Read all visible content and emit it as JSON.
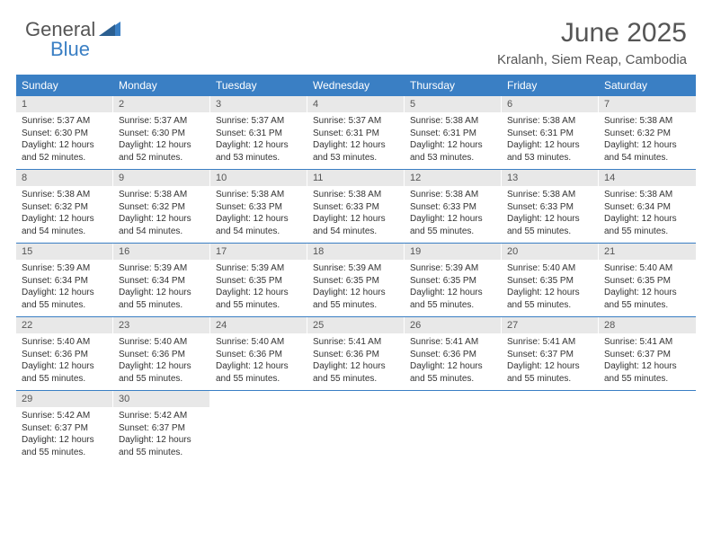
{
  "logo": {
    "textGeneral": "General",
    "textBlue": "Blue"
  },
  "title": "June 2025",
  "location": "Kralanh, Siem Reap, Cambodia",
  "colors": {
    "headerBlue": "#3a7fc4",
    "dayNumBg": "#e8e8e8",
    "textDark": "#333333",
    "textMedium": "#555555",
    "background": "#ffffff"
  },
  "typography": {
    "title_fontsize": 30,
    "location_fontsize": 15,
    "weekday_fontsize": 12,
    "daynum_fontsize": 11,
    "body_fontsize": 10
  },
  "weekdays": [
    "Sunday",
    "Monday",
    "Tuesday",
    "Wednesday",
    "Thursday",
    "Friday",
    "Saturday"
  ],
  "days": [
    {
      "num": "1",
      "sunrise": "Sunrise: 5:37 AM",
      "sunset": "Sunset: 6:30 PM",
      "daylight": "Daylight: 12 hours and 52 minutes."
    },
    {
      "num": "2",
      "sunrise": "Sunrise: 5:37 AM",
      "sunset": "Sunset: 6:30 PM",
      "daylight": "Daylight: 12 hours and 52 minutes."
    },
    {
      "num": "3",
      "sunrise": "Sunrise: 5:37 AM",
      "sunset": "Sunset: 6:31 PM",
      "daylight": "Daylight: 12 hours and 53 minutes."
    },
    {
      "num": "4",
      "sunrise": "Sunrise: 5:37 AM",
      "sunset": "Sunset: 6:31 PM",
      "daylight": "Daylight: 12 hours and 53 minutes."
    },
    {
      "num": "5",
      "sunrise": "Sunrise: 5:38 AM",
      "sunset": "Sunset: 6:31 PM",
      "daylight": "Daylight: 12 hours and 53 minutes."
    },
    {
      "num": "6",
      "sunrise": "Sunrise: 5:38 AM",
      "sunset": "Sunset: 6:31 PM",
      "daylight": "Daylight: 12 hours and 53 minutes."
    },
    {
      "num": "7",
      "sunrise": "Sunrise: 5:38 AM",
      "sunset": "Sunset: 6:32 PM",
      "daylight": "Daylight: 12 hours and 54 minutes."
    },
    {
      "num": "8",
      "sunrise": "Sunrise: 5:38 AM",
      "sunset": "Sunset: 6:32 PM",
      "daylight": "Daylight: 12 hours and 54 minutes."
    },
    {
      "num": "9",
      "sunrise": "Sunrise: 5:38 AM",
      "sunset": "Sunset: 6:32 PM",
      "daylight": "Daylight: 12 hours and 54 minutes."
    },
    {
      "num": "10",
      "sunrise": "Sunrise: 5:38 AM",
      "sunset": "Sunset: 6:33 PM",
      "daylight": "Daylight: 12 hours and 54 minutes."
    },
    {
      "num": "11",
      "sunrise": "Sunrise: 5:38 AM",
      "sunset": "Sunset: 6:33 PM",
      "daylight": "Daylight: 12 hours and 54 minutes."
    },
    {
      "num": "12",
      "sunrise": "Sunrise: 5:38 AM",
      "sunset": "Sunset: 6:33 PM",
      "daylight": "Daylight: 12 hours and 55 minutes."
    },
    {
      "num": "13",
      "sunrise": "Sunrise: 5:38 AM",
      "sunset": "Sunset: 6:33 PM",
      "daylight": "Daylight: 12 hours and 55 minutes."
    },
    {
      "num": "14",
      "sunrise": "Sunrise: 5:38 AM",
      "sunset": "Sunset: 6:34 PM",
      "daylight": "Daylight: 12 hours and 55 minutes."
    },
    {
      "num": "15",
      "sunrise": "Sunrise: 5:39 AM",
      "sunset": "Sunset: 6:34 PM",
      "daylight": "Daylight: 12 hours and 55 minutes."
    },
    {
      "num": "16",
      "sunrise": "Sunrise: 5:39 AM",
      "sunset": "Sunset: 6:34 PM",
      "daylight": "Daylight: 12 hours and 55 minutes."
    },
    {
      "num": "17",
      "sunrise": "Sunrise: 5:39 AM",
      "sunset": "Sunset: 6:35 PM",
      "daylight": "Daylight: 12 hours and 55 minutes."
    },
    {
      "num": "18",
      "sunrise": "Sunrise: 5:39 AM",
      "sunset": "Sunset: 6:35 PM",
      "daylight": "Daylight: 12 hours and 55 minutes."
    },
    {
      "num": "19",
      "sunrise": "Sunrise: 5:39 AM",
      "sunset": "Sunset: 6:35 PM",
      "daylight": "Daylight: 12 hours and 55 minutes."
    },
    {
      "num": "20",
      "sunrise": "Sunrise: 5:40 AM",
      "sunset": "Sunset: 6:35 PM",
      "daylight": "Daylight: 12 hours and 55 minutes."
    },
    {
      "num": "21",
      "sunrise": "Sunrise: 5:40 AM",
      "sunset": "Sunset: 6:35 PM",
      "daylight": "Daylight: 12 hours and 55 minutes."
    },
    {
      "num": "22",
      "sunrise": "Sunrise: 5:40 AM",
      "sunset": "Sunset: 6:36 PM",
      "daylight": "Daylight: 12 hours and 55 minutes."
    },
    {
      "num": "23",
      "sunrise": "Sunrise: 5:40 AM",
      "sunset": "Sunset: 6:36 PM",
      "daylight": "Daylight: 12 hours and 55 minutes."
    },
    {
      "num": "24",
      "sunrise": "Sunrise: 5:40 AM",
      "sunset": "Sunset: 6:36 PM",
      "daylight": "Daylight: 12 hours and 55 minutes."
    },
    {
      "num": "25",
      "sunrise": "Sunrise: 5:41 AM",
      "sunset": "Sunset: 6:36 PM",
      "daylight": "Daylight: 12 hours and 55 minutes."
    },
    {
      "num": "26",
      "sunrise": "Sunrise: 5:41 AM",
      "sunset": "Sunset: 6:36 PM",
      "daylight": "Daylight: 12 hours and 55 minutes."
    },
    {
      "num": "27",
      "sunrise": "Sunrise: 5:41 AM",
      "sunset": "Sunset: 6:37 PM",
      "daylight": "Daylight: 12 hours and 55 minutes."
    },
    {
      "num": "28",
      "sunrise": "Sunrise: 5:41 AM",
      "sunset": "Sunset: 6:37 PM",
      "daylight": "Daylight: 12 hours and 55 minutes."
    },
    {
      "num": "29",
      "sunrise": "Sunrise: 5:42 AM",
      "sunset": "Sunset: 6:37 PM",
      "daylight": "Daylight: 12 hours and 55 minutes."
    },
    {
      "num": "30",
      "sunrise": "Sunrise: 5:42 AM",
      "sunset": "Sunset: 6:37 PM",
      "daylight": "Daylight: 12 hours and 55 minutes."
    }
  ]
}
